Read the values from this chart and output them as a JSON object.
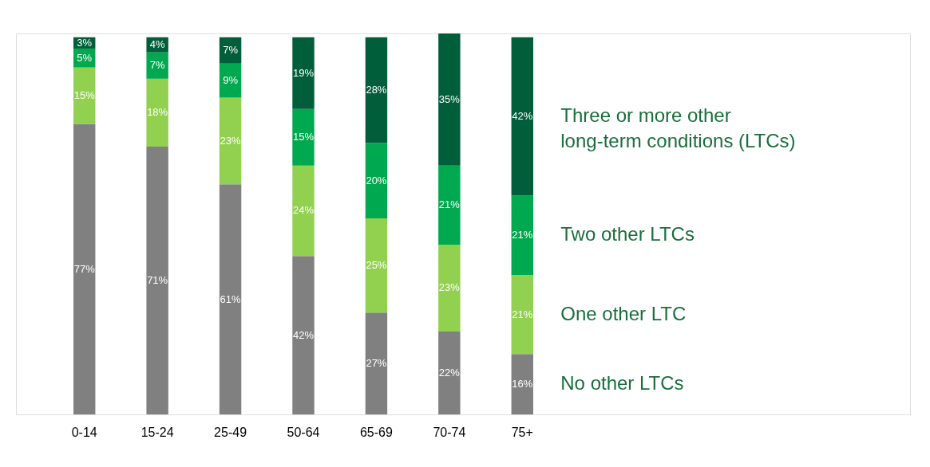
{
  "chart_data": {
    "type": "bar",
    "stacked": true,
    "legend": "right",
    "categories": [
      "0-14",
      "15-24",
      "25-49",
      "50-64",
      "65-69",
      "70-74",
      "75+"
    ],
    "series": [
      {
        "name": "No other LTCs",
        "color": "#808080",
        "values": [
          77,
          71,
          61,
          42,
          27,
          22,
          16
        ],
        "value_labels": [
          "77%",
          "71%",
          "61%",
          "42%",
          "27%",
          "22%",
          "16%"
        ]
      },
      {
        "name": "One other LTC",
        "color": "#92d050",
        "values": [
          15,
          18,
          23,
          24,
          25,
          23,
          21
        ],
        "value_labels": [
          "15%",
          "18%",
          "23%",
          "24%",
          "25%",
          "23%",
          "21%"
        ]
      },
      {
        "name": "Two other LTCs",
        "color": "#00a94f",
        "values": [
          5,
          7,
          9,
          15,
          20,
          21,
          21
        ],
        "value_labels": [
          "5%",
          "7%",
          "9%",
          "15%",
          "20%",
          "21%",
          "21%"
        ]
      },
      {
        "name": "Three or more other\nlong-term conditions (LTCs)",
        "color": "#005e3a",
        "values": [
          3,
          4,
          7,
          19,
          28,
          35,
          42
        ],
        "value_labels": [
          "3%",
          "4%",
          "7%",
          "19%",
          "28%",
          "35%",
          "42%"
        ]
      }
    ]
  }
}
